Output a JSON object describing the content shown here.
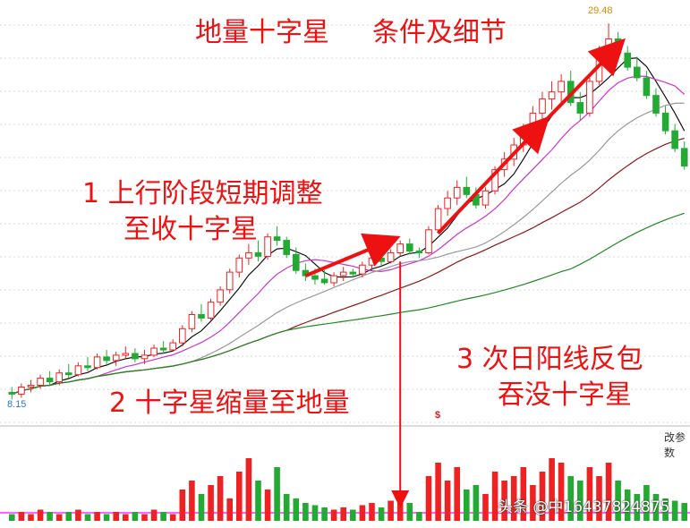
{
  "annotations": {
    "title": "地量十字星",
    "subtitle": "条件及细节",
    "cond1_line1": "1 上行阶段短期调整",
    "cond1_line2": "至收十字星",
    "cond2": "2 十字星缩量至地量",
    "cond3_line1": "3 次日阳线反包",
    "cond3_line2": "吞没十字星"
  },
  "labels": {
    "high_price": "29.48",
    "low_price": "8.15",
    "marker": "$",
    "right_cut": "改参数"
  },
  "watermark": "头条 @中16437824875",
  "colors": {
    "up": "#ee2222",
    "down": "#22aa33",
    "annotation": "#ee1111",
    "ma5": "#111111",
    "ma10": "#cc33cc",
    "ma20": "#999999",
    "ma30": "#8b1a1a",
    "ma60": "#228822",
    "arrow": "#ee1111"
  },
  "chart_data": {
    "type": "candlestick",
    "price_high_label": 29.48,
    "price_low_label": 8.15,
    "candles": [
      [
        8.6,
        8.9,
        8.2,
        8.5
      ],
      [
        8.5,
        9.1,
        8.3,
        8.9
      ],
      [
        8.9,
        9.3,
        8.6,
        9.0
      ],
      [
        9.0,
        9.6,
        8.8,
        9.4
      ],
      [
        9.4,
        9.8,
        9.0,
        9.2
      ],
      [
        9.2,
        9.9,
        9.0,
        9.7
      ],
      [
        9.7,
        10.2,
        9.4,
        9.6
      ],
      [
        9.6,
        10.3,
        9.5,
        10.1
      ],
      [
        10.1,
        10.6,
        9.8,
        10.0
      ],
      [
        10.0,
        10.8,
        9.9,
        10.6
      ],
      [
        10.6,
        11.0,
        10.2,
        10.4
      ],
      [
        10.4,
        10.9,
        10.1,
        10.7
      ],
      [
        10.7,
        11.2,
        10.5,
        10.8
      ],
      [
        10.8,
        11.1,
        10.3,
        10.5
      ],
      [
        10.5,
        11.0,
        10.2,
        10.7
      ],
      [
        10.7,
        11.3,
        10.6,
        11.1
      ],
      [
        11.1,
        11.5,
        10.8,
        11.0
      ],
      [
        11.0,
        11.6,
        10.9,
        11.4
      ],
      [
        11.4,
        12.4,
        11.2,
        12.2
      ],
      [
        12.2,
        13.2,
        12.0,
        13.0
      ],
      [
        13.0,
        13.6,
        12.6,
        12.8
      ],
      [
        12.8,
        13.9,
        12.7,
        13.7
      ],
      [
        13.7,
        14.6,
        13.5,
        14.4
      ],
      [
        14.4,
        15.6,
        14.2,
        15.4
      ],
      [
        15.4,
        16.4,
        15.1,
        16.2
      ],
      [
        16.2,
        17.0,
        15.8,
        16.5
      ],
      [
        16.5,
        17.2,
        16.0,
        16.3
      ],
      [
        16.3,
        17.6,
        16.1,
        17.4
      ],
      [
        17.4,
        18.0,
        16.9,
        17.2
      ],
      [
        17.2,
        17.4,
        16.2,
        16.4
      ],
      [
        16.4,
        16.8,
        15.3,
        15.5
      ],
      [
        15.5,
        15.9,
        14.9,
        15.2
      ],
      [
        15.2,
        15.6,
        14.7,
        15.0
      ],
      [
        15.0,
        15.5,
        14.7,
        14.8
      ],
      [
        14.8,
        15.4,
        14.6,
        15.2
      ],
      [
        15.2,
        15.7,
        14.9,
        15.4
      ],
      [
        15.4,
        15.6,
        15.1,
        15.3
      ],
      [
        15.3,
        16.0,
        15.1,
        15.8
      ],
      [
        15.8,
        16.4,
        15.5,
        16.2
      ],
      [
        16.2,
        16.6,
        15.8,
        16.0
      ],
      [
        16.0,
        16.7,
        15.9,
        16.5
      ],
      [
        16.5,
        17.2,
        16.3,
        17.0
      ],
      [
        17.0,
        17.3,
        16.4,
        16.6
      ],
      [
        16.6,
        16.8,
        16.2,
        16.5
      ],
      [
        16.5,
        18.0,
        16.4,
        17.8
      ],
      [
        17.8,
        19.2,
        17.6,
        19.0
      ],
      [
        19.0,
        20.0,
        18.6,
        19.6
      ],
      [
        19.6,
        20.6,
        19.2,
        20.2
      ],
      [
        20.2,
        20.8,
        19.6,
        19.8
      ],
      [
        19.8,
        20.2,
        19.0,
        19.2
      ],
      [
        19.2,
        20.2,
        19.0,
        20.0
      ],
      [
        20.0,
        21.4,
        19.8,
        21.2
      ],
      [
        21.2,
        22.2,
        20.8,
        21.8
      ],
      [
        21.8,
        23.0,
        21.4,
        22.6
      ],
      [
        22.6,
        23.8,
        22.2,
        23.4
      ],
      [
        23.4,
        24.8,
        23.0,
        24.4
      ],
      [
        24.4,
        25.6,
        24.0,
        25.2
      ],
      [
        25.2,
        26.2,
        24.6,
        25.6
      ],
      [
        25.6,
        26.6,
        25.0,
        26.2
      ],
      [
        26.2,
        26.8,
        24.8,
        25.0
      ],
      [
        25.0,
        25.6,
        24.0,
        24.4
      ],
      [
        24.4,
        26.4,
        24.2,
        26.2
      ],
      [
        26.2,
        28.2,
        26.0,
        27.8
      ],
      [
        27.8,
        29.48,
        27.4,
        28.6
      ],
      [
        28.6,
        29.0,
        27.6,
        27.8
      ],
      [
        27.8,
        28.2,
        26.8,
        27.0
      ],
      [
        27.0,
        27.6,
        26.2,
        26.4
      ],
      [
        26.4,
        26.8,
        25.2,
        25.4
      ],
      [
        25.4,
        25.8,
        24.2,
        24.4
      ],
      [
        24.4,
        24.8,
        23.2,
        23.4
      ],
      [
        23.4,
        23.8,
        22.2,
        22.4
      ],
      [
        22.4,
        22.8,
        21.2,
        21.4
      ]
    ],
    "volumes": [
      3,
      4,
      3,
      5,
      4,
      3,
      4,
      5,
      3,
      4,
      3,
      4,
      3,
      4,
      3,
      5,
      4,
      3,
      14,
      18,
      12,
      16,
      20,
      10,
      22,
      28,
      18,
      14,
      24,
      12,
      10,
      8,
      7,
      6,
      5,
      6,
      5,
      7,
      8,
      6,
      9,
      10,
      8,
      4,
      20,
      26,
      18,
      24,
      14,
      16,
      12,
      22,
      18,
      20,
      24,
      16,
      22,
      28,
      26,
      20,
      18,
      24,
      20,
      26,
      18,
      14,
      12,
      16,
      12,
      10,
      9,
      8
    ],
    "annotations_arrows": 4
  }
}
